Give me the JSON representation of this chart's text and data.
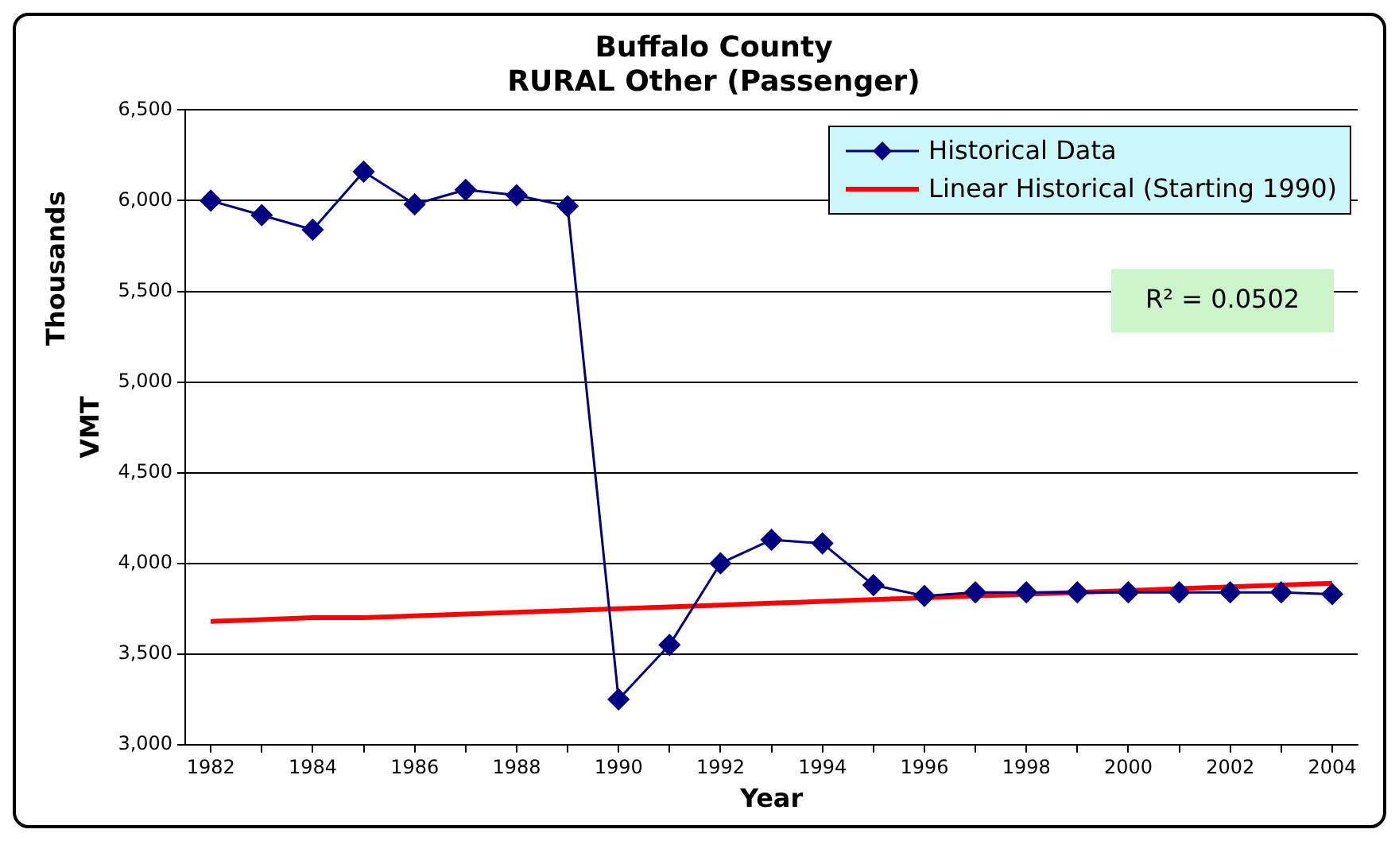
{
  "chart_data": {
    "type": "line",
    "title": "Buffalo County\nRURAL Other (Passenger)",
    "xlabel": "Year",
    "ylabel": "VMT",
    "annotations": [
      "Thousands",
      "R² = 0.0502"
    ],
    "categories": [
      "1982",
      null,
      "1984",
      null,
      "1986",
      null,
      "1988",
      null,
      "1990",
      null,
      "1992",
      null,
      "1994",
      null,
      "1996",
      null,
      "1998",
      null,
      "2000",
      null,
      "2002",
      null,
      "2004"
    ],
    "series": [
      {
        "name": "Historical Data",
        "color": "#000080",
        "marker": "diamond",
        "values": [
          6000,
          5920,
          5840,
          6160,
          5980,
          6060,
          6030,
          5970,
          3250,
          3550,
          4000,
          4130,
          4110,
          3880,
          3820,
          3840,
          3840,
          3840,
          3840,
          3840,
          3840,
          3840,
          3830
        ]
      },
      {
        "name": "Linear Historical (Starting 1990)",
        "color": "#ff0000",
        "marker": "none",
        "values": [
          3680,
          3690,
          3700,
          3700,
          3710,
          3720,
          3730,
          3740,
          3750,
          3760,
          3770,
          3780,
          3790,
          3800,
          3810,
          3820,
          3830,
          3840,
          3850,
          3860,
          3870,
          3880,
          3890
        ]
      }
    ],
    "ylim": [
      3000,
      6500
    ],
    "yticks": [
      {
        "value": 3000,
        "label": "3,000"
      },
      {
        "value": 3500,
        "label": "3,500"
      },
      {
        "value": 4000,
        "label": "4,000"
      },
      {
        "value": 4500,
        "label": "4,500"
      },
      {
        "value": 5000,
        "label": "5,000"
      },
      {
        "value": 5500,
        "label": "5,500"
      },
      {
        "value": 6000,
        "label": "6,000"
      },
      {
        "value": 6500,
        "label": "6,500"
      }
    ],
    "grid": "y",
    "legend": "top right"
  }
}
